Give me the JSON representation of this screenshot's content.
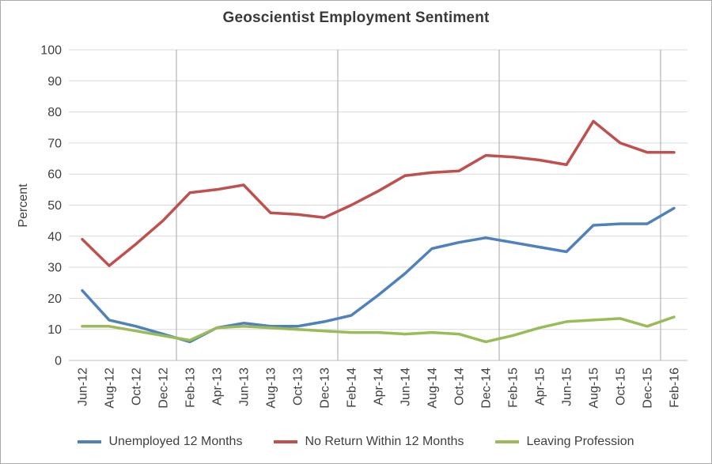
{
  "chart_data": {
    "type": "line",
    "title": "Geoscientist Employment Sentiment",
    "xlabel": "",
    "ylabel": "Percent",
    "ylim": [
      0,
      100
    ],
    "ytick_step": 10,
    "grid": "horizontal gridlines every 10 units; vertical gray lines at year boundaries (before each Feb category)",
    "legend_position": "bottom",
    "categories": [
      "Jun-12",
      "Aug-12",
      "Oct-12",
      "Dec-12",
      "Feb-13",
      "Apr-13",
      "Jun-13",
      "Aug-13",
      "Oct-13",
      "Dec-13",
      "Feb-14",
      "Apr-14",
      "Jun-14",
      "Aug-14",
      "Oct-14",
      "Dec-14",
      "Feb-15",
      "Apr-15",
      "Jun-15",
      "Aug-15",
      "Oct-15",
      "Dec-15",
      "Feb-16"
    ],
    "series": [
      {
        "name": "Unemployed 12 Months",
        "color": "#4F81BD",
        "values": [
          22.5,
          13,
          11,
          8.5,
          6,
          10.5,
          12,
          11,
          11,
          12.5,
          14.5,
          21,
          28,
          36,
          38,
          39.5,
          38,
          36.5,
          35,
          43.5,
          44,
          44,
          49
        ]
      },
      {
        "name": "No Return Within 12 Months",
        "color": "#C0504D",
        "values": [
          39,
          30.5,
          37.5,
          45,
          54,
          55,
          56.5,
          47.5,
          47,
          46,
          50,
          54.5,
          59.5,
          60.5,
          61,
          66,
          65.5,
          64.5,
          63,
          77,
          70,
          67,
          67
        ]
      },
      {
        "name": "Leaving Profession",
        "color": "#9BBB59",
        "values": [
          11,
          11,
          9.5,
          8,
          6.5,
          10.5,
          11,
          10.5,
          10,
          9.5,
          9,
          9,
          8.5,
          9,
          8.5,
          6,
          8,
          10.5,
          12.5,
          13,
          13.5,
          11,
          14
        ]
      }
    ],
    "colors": {
      "gridline": "#d9d9d9",
      "year_line": "#a6a6a6",
      "axis_line": "#bfbfbf",
      "axis_text": "#3f3f3f",
      "title_text": "#3a3a3a",
      "frame_border": "#ababab"
    }
  }
}
